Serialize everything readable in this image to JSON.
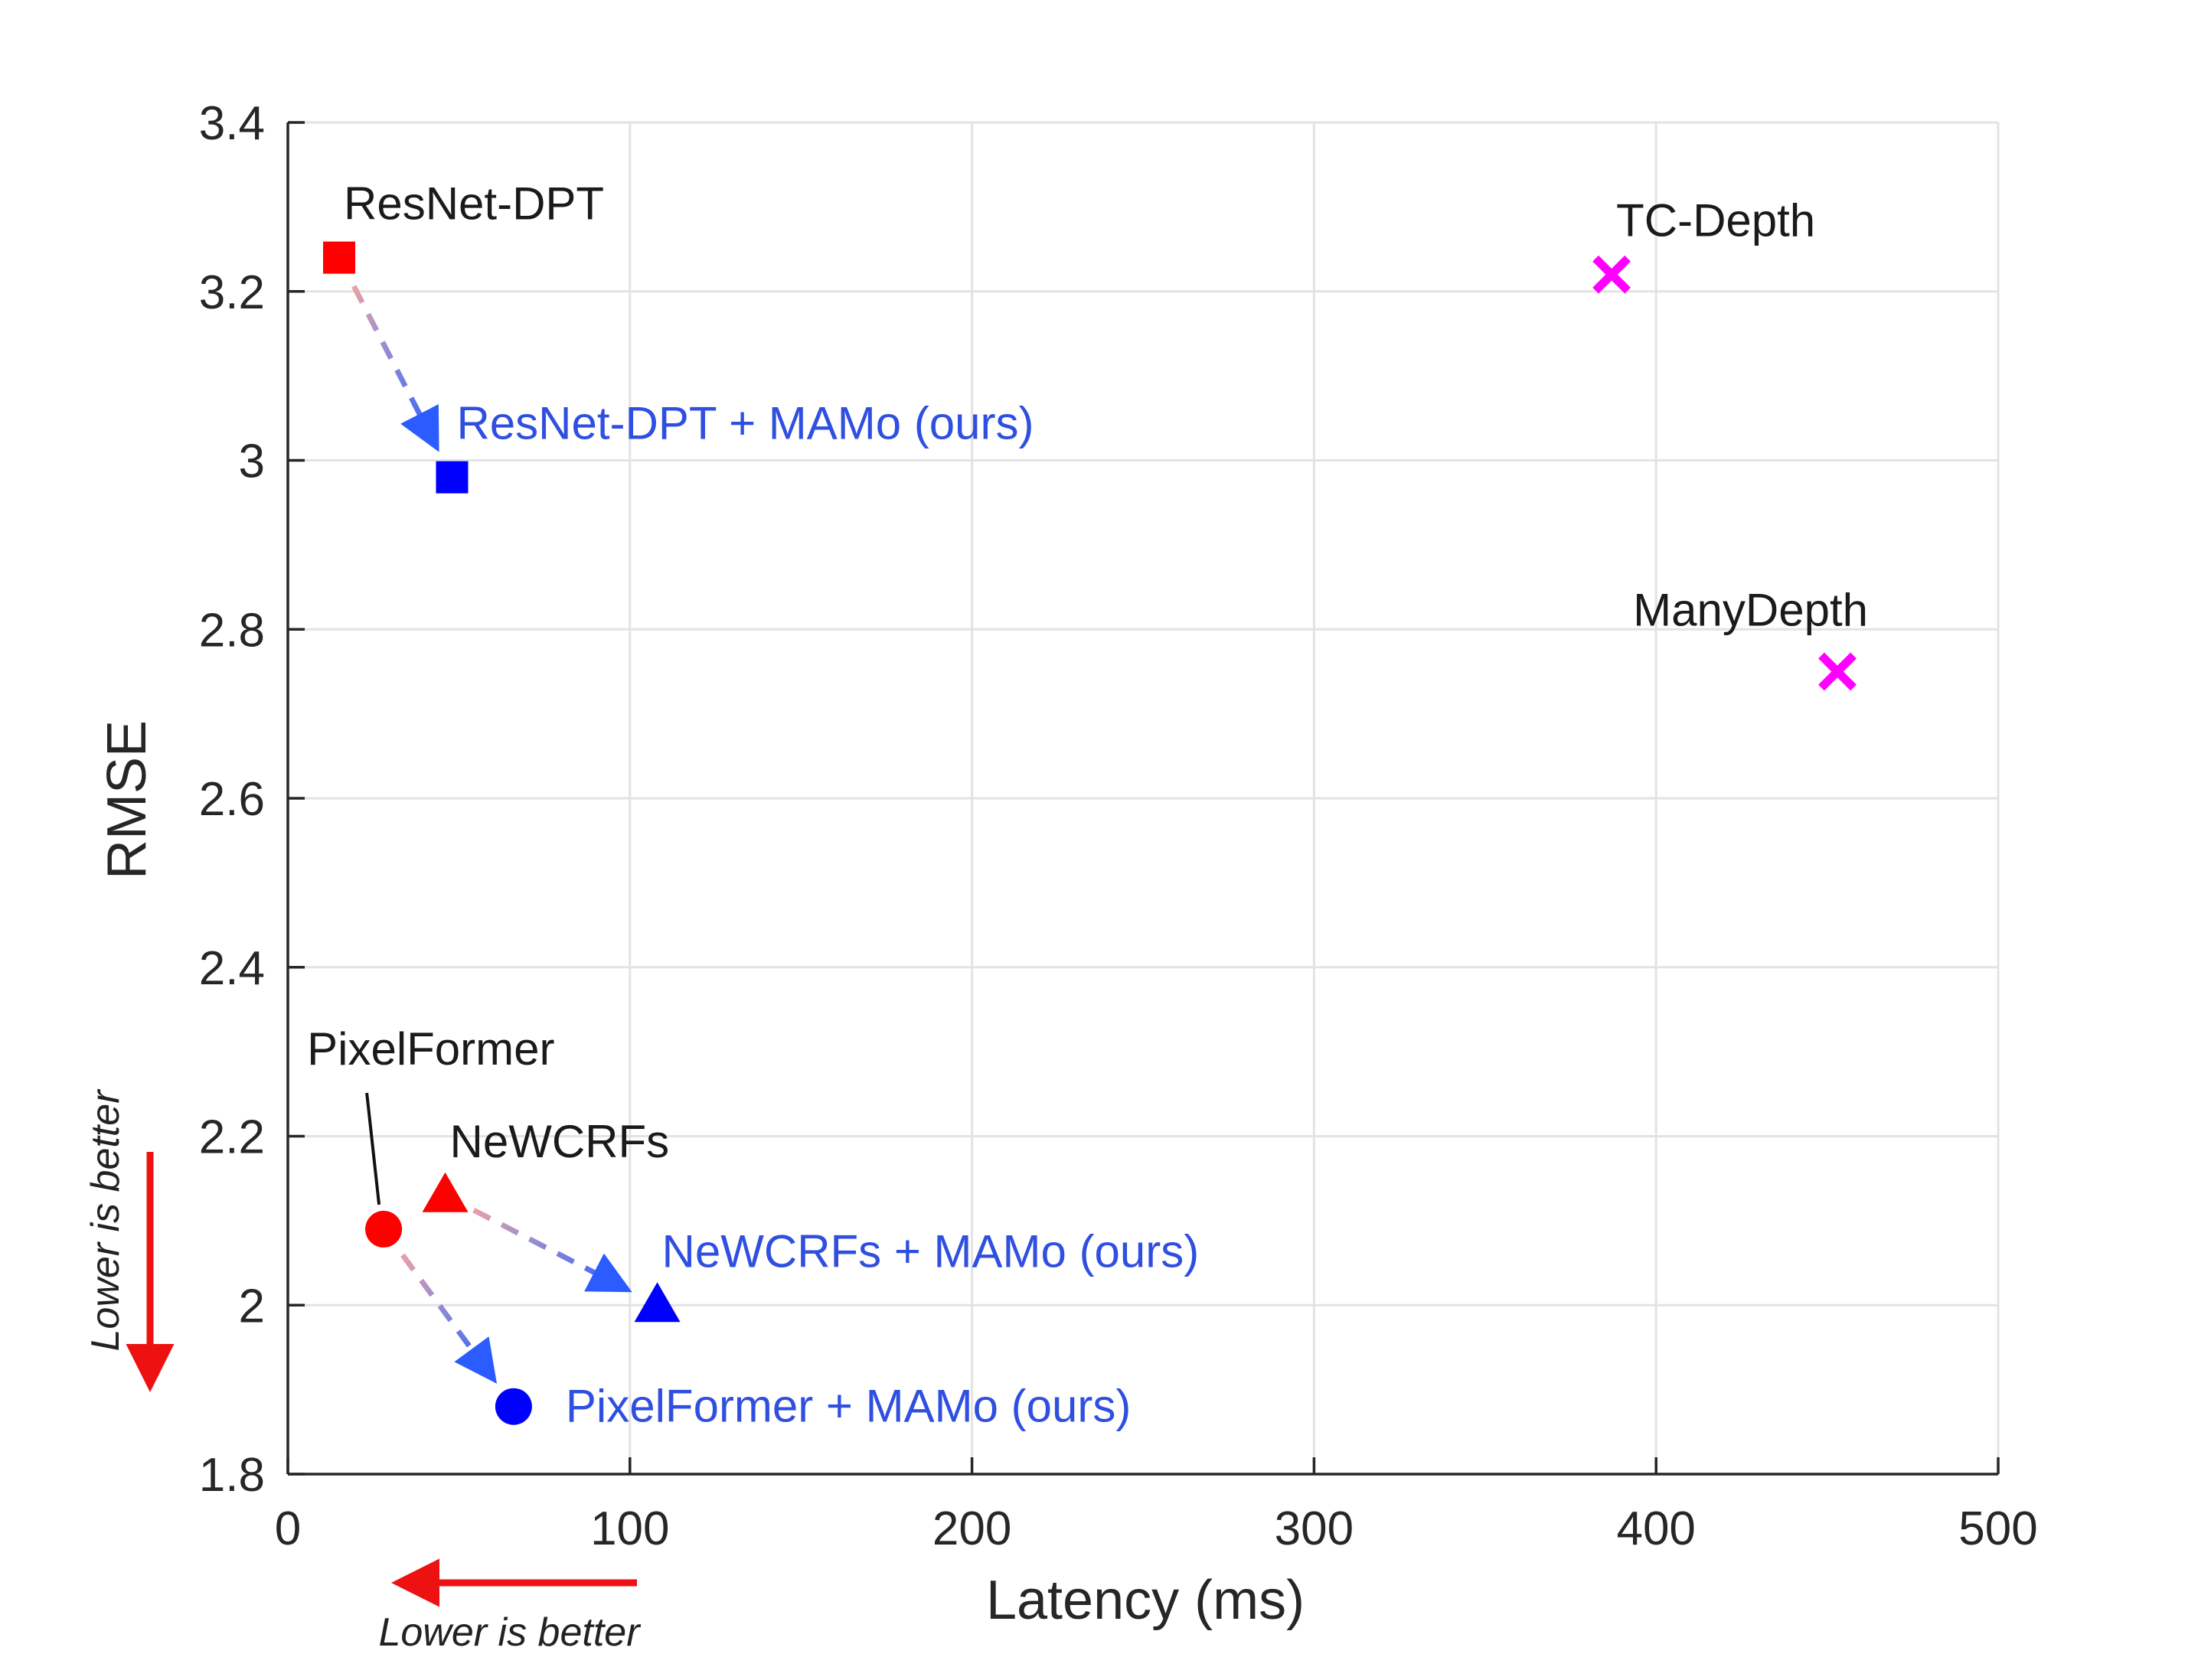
{
  "chart_data": {
    "type": "scatter",
    "title": "",
    "xlabel": "Latency (ms)",
    "ylabel": "RMSE",
    "xlim": [
      0,
      500
    ],
    "ylim": [
      1.8,
      3.4
    ],
    "x_ticks": [
      0,
      100,
      200,
      300,
      400,
      500
    ],
    "x_tick_labels": [
      "0",
      "100",
      "200",
      "300",
      "400",
      "500"
    ],
    "y_ticks": [
      1.8,
      2.0,
      2.2,
      2.4,
      2.6,
      2.8,
      3.0,
      3.2,
      3.4
    ],
    "y_tick_labels": [
      "1.8",
      "2",
      "2.2",
      "2.4",
      "2.6",
      "2.8",
      "3",
      "3.2",
      "3.4"
    ],
    "grid": true,
    "points": [
      {
        "id": "resnet-dpt",
        "label": "ResNet-DPT",
        "x": 15,
        "y": 3.24,
        "marker": "square",
        "color": "#ff0000",
        "label_color": "#1a1a1a",
        "label_anchor": "above-right"
      },
      {
        "id": "resnet-dpt-mamo",
        "label": "ResNet-DPT + MAMo (ours)",
        "x": 48,
        "y": 2.98,
        "marker": "square",
        "color": "#0000ff",
        "label_color": "#2f4fe0",
        "label_anchor": "above-right"
      },
      {
        "id": "tc-depth",
        "label": "TC-Depth",
        "x": 387,
        "y": 3.22,
        "marker": "x",
        "color": "#ff00ff",
        "label_color": "#1a1a1a",
        "label_anchor": "above-right"
      },
      {
        "id": "manydepth",
        "label": "ManyDepth",
        "x": 453,
        "y": 2.75,
        "marker": "x",
        "color": "#ff00ff",
        "label_color": "#1a1a1a",
        "label_anchor": "above-left"
      },
      {
        "id": "pixelformer",
        "label": "PixelFormer",
        "x": 28,
        "y": 2.09,
        "marker": "circle",
        "color": "#ff0000",
        "label_color": "#1a1a1a",
        "label_anchor": "leader-above"
      },
      {
        "id": "newcrfs",
        "label": "NeWCRFs",
        "x": 46,
        "y": 2.13,
        "marker": "triangle",
        "color": "#ff0000",
        "label_color": "#1a1a1a",
        "label_anchor": "above-right"
      },
      {
        "id": "newcrfs-mamo",
        "label": "NeWCRFs + MAMo (ours)",
        "x": 108,
        "y": 2.0,
        "marker": "triangle",
        "color": "#0000ff",
        "label_color": "#2f4fe0",
        "label_anchor": "above-right"
      },
      {
        "id": "pixelformer-mamo",
        "label": "PixelFormer + MAMo (ours)",
        "x": 66,
        "y": 1.88,
        "marker": "circle",
        "color": "#0000ff",
        "label_color": "#2f4fe0",
        "label_anchor": "right"
      }
    ],
    "arrows": [
      {
        "from": "resnet-dpt",
        "to": "resnet-dpt-mamo",
        "style": "dashed"
      },
      {
        "from": "newcrfs",
        "to": "newcrfs-mamo",
        "style": "dashed"
      },
      {
        "from": "pixelformer",
        "to": "pixelformer-mamo",
        "style": "dashed"
      }
    ],
    "annotations": {
      "x_direction_note": "Lower is better",
      "y_direction_note": "Lower is better"
    }
  }
}
